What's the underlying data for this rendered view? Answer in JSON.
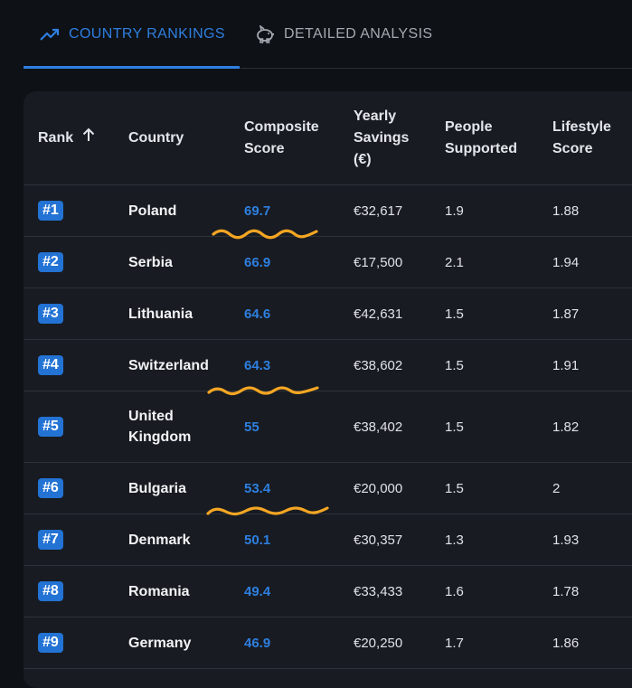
{
  "tabs": {
    "rankings_label": "COUNTRY RANKINGS",
    "rankings_icon": "trending-up-icon",
    "analysis_label": "DETAILED ANALYSIS",
    "analysis_icon": "piggy-bank-icon",
    "active": "rankings"
  },
  "colors": {
    "accent": "#2e7fe0",
    "badge": "#2373d4",
    "annotation": "#f5a623"
  },
  "table": {
    "headers": {
      "rank": "Rank",
      "country": "Country",
      "composite_1": "Composite",
      "composite_2": "Score",
      "savings_1": "Yearly",
      "savings_2": "Savings",
      "savings_3": "(€)",
      "people_1": "People",
      "people_2": "Supported",
      "lifestyle_1": "Lifestyle",
      "lifestyle_2": "Score"
    },
    "sort": "ascending",
    "rows": [
      {
        "rank": "#1",
        "country": "Poland",
        "score": "69.7",
        "savings": "€32,617",
        "people": "1.9",
        "lifestyle": "1.88"
      },
      {
        "rank": "#2",
        "country": "Serbia",
        "score": "66.9",
        "savings": "€17,500",
        "people": "2.1",
        "lifestyle": "1.94"
      },
      {
        "rank": "#3",
        "country": "Lithuania",
        "score": "64.6",
        "savings": "€42,631",
        "people": "1.5",
        "lifestyle": "1.87"
      },
      {
        "rank": "#4",
        "country": "Switzerland",
        "score": "64.3",
        "savings": "€38,602",
        "people": "1.5",
        "lifestyle": "1.91"
      },
      {
        "rank": "#5",
        "country": "United Kingdom",
        "country_line1": "United",
        "country_line2": "Kingdom",
        "score": "55",
        "savings": "€38,402",
        "people": "1.5",
        "lifestyle": "1.82"
      },
      {
        "rank": "#6",
        "country": "Bulgaria",
        "score": "53.4",
        "savings": "€20,000",
        "people": "1.5",
        "lifestyle": "2"
      },
      {
        "rank": "#7",
        "country": "Denmark",
        "score": "50.1",
        "savings": "€30,357",
        "people": "1.3",
        "lifestyle": "1.93"
      },
      {
        "rank": "#8",
        "country": "Romania",
        "score": "49.4",
        "savings": "€33,433",
        "people": "1.6",
        "lifestyle": "1.78"
      },
      {
        "rank": "#9",
        "country": "Germany",
        "score": "46.9",
        "savings": "€20,250",
        "people": "1.7",
        "lifestyle": "1.86"
      }
    ]
  },
  "annotations": {
    "underlined_scores": [
      "69.7",
      "64.3",
      "53.4"
    ],
    "style": "orange hand-drawn squiggle"
  }
}
